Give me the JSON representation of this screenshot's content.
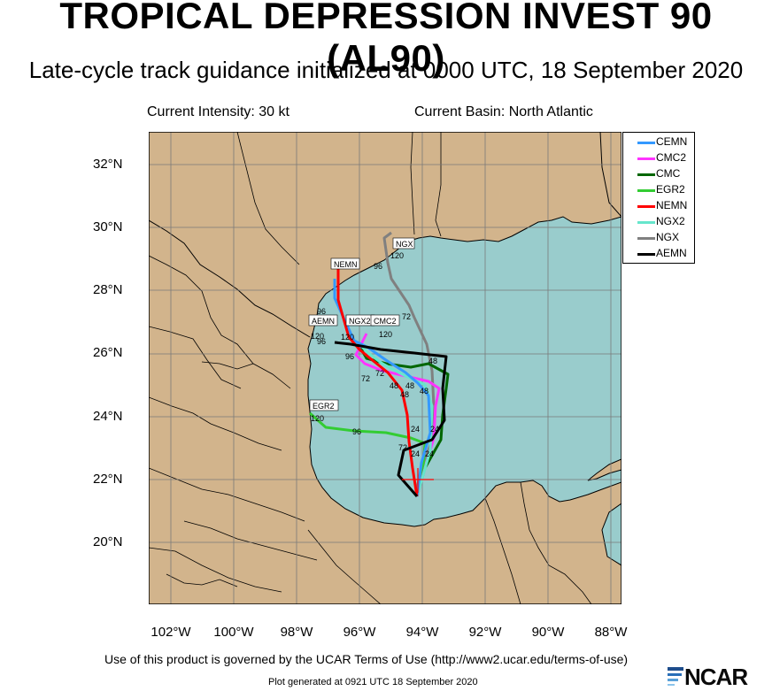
{
  "header": {
    "title": "TROPICAL DEPRESSION INVEST 90 (AL90)",
    "subtitle": "Late-cycle track guidance initialized at 0000 UTC, 18 September 2020",
    "intensity": "Current Intensity: 30 kt",
    "basin": "Current Basin: North Atlantic"
  },
  "axes": {
    "lat_labels": [
      "32°N",
      "30°N",
      "28°N",
      "26°N",
      "24°N",
      "22°N",
      "20°N"
    ],
    "lon_labels": [
      "102°W",
      "100°W",
      "98°W",
      "96°W",
      "94°W",
      "92°W",
      "90°W",
      "88°W"
    ]
  },
  "legend": [
    {
      "name": "CEMN",
      "color": "#3399ff"
    },
    {
      "name": "CMC2",
      "color": "#ff33ff"
    },
    {
      "name": "CMC",
      "color": "#006600"
    },
    {
      "name": "EGR2",
      "color": "#33cc33"
    },
    {
      "name": "NEMN",
      "color": "#ff0000"
    },
    {
      "name": "NGX2",
      "color": "#66e6cc"
    },
    {
      "name": "NGX",
      "color": "#808080"
    },
    {
      "name": "AEMN",
      "color": "#000000"
    }
  ],
  "map_labels": {
    "nemn": "NEMN",
    "aemn": "AEMN",
    "ngx2": "NGX2",
    "cmc2": "CMC2",
    "ngx": "NGX",
    "egr2": "EGR2",
    "h120a": "120",
    "h120b": "120",
    "h120c": "120",
    "h120d": "120",
    "h120e": "120",
    "h96a": "96",
    "h96b": "96",
    "h96c": "96",
    "h96d": "96",
    "h96e": "96",
    "h72a": "72",
    "h72b": "72",
    "h72c": "72",
    "h72d": "72",
    "h48a": "48",
    "h48b": "48",
    "h48c": "48",
    "h48d": "48",
    "h48e": "48",
    "h24a": "24",
    "h24b": "24",
    "h24c": "24",
    "h24d": "24"
  },
  "footer": {
    "terms": "Use of this product is governed by the UCAR Terms of Use (http://www2.ucar.edu/terms-of-use)",
    "generated": "Plot generated at 0921 UTC   18 September 2020",
    "logo": "NCAR"
  },
  "colors": {
    "land": "#d2b48c",
    "water": "#99cccc",
    "border": "#000000"
  }
}
